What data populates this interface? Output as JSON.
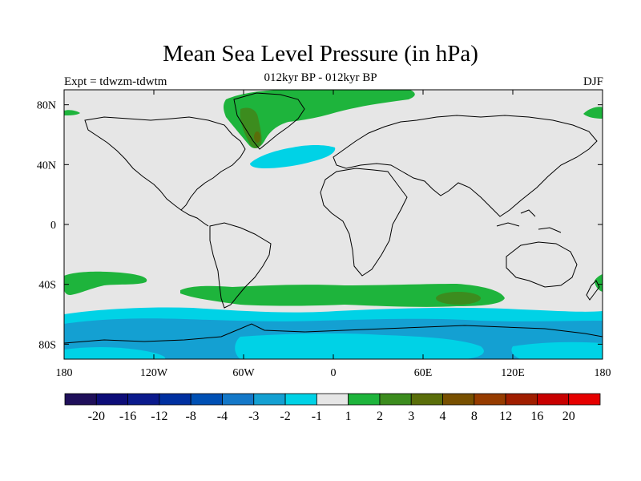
{
  "header": {
    "title": "Mean Sea Level Pressure (in hPa)",
    "subtitle": "012kyr BP - 012kyr BP",
    "left_label": "Expt = tdwzm-tdwtm",
    "right_label": "DJF"
  },
  "map": {
    "projection": "cylindrical-equidistant",
    "lon_range": [
      -180,
      180
    ],
    "lat_range": [
      -90,
      90
    ],
    "background_color": "#e6e6e6",
    "coastline_color": "#000000",
    "x_ticks": [
      {
        "lon": -180,
        "label": "180"
      },
      {
        "lon": -120,
        "label": "120W"
      },
      {
        "lon": -60,
        "label": "60W"
      },
      {
        "lon": 0,
        "label": "0"
      },
      {
        "lon": 60,
        "label": "60E"
      },
      {
        "lon": 120,
        "label": "120E"
      },
      {
        "lon": 180,
        "label": "180"
      }
    ],
    "y_ticks": [
      {
        "lat": 80,
        "label": "80N"
      },
      {
        "lat": 40,
        "label": "40N"
      },
      {
        "lat": 0,
        "label": "0"
      },
      {
        "lat": -40,
        "label": "40S"
      },
      {
        "lat": -80,
        "label": "80S"
      }
    ]
  },
  "colorbar": {
    "colors": [
      "#1f0f5a",
      "#0d0d78",
      "#0b1a8c",
      "#0030a0",
      "#0050b4",
      "#1478c8",
      "#14a0d2",
      "#00d2e6",
      "#e6e6e6",
      "#1eb43c",
      "#3c8c1e",
      "#5a6e0a",
      "#785000",
      "#963c00",
      "#a01e00",
      "#c80000",
      "#e60000"
    ],
    "labels": [
      "-20",
      "-16",
      "-12",
      "-8",
      "-4",
      "-3",
      "-2",
      "-1",
      "1",
      "2",
      "3",
      "4",
      "8",
      "12",
      "16",
      "20"
    ]
  }
}
